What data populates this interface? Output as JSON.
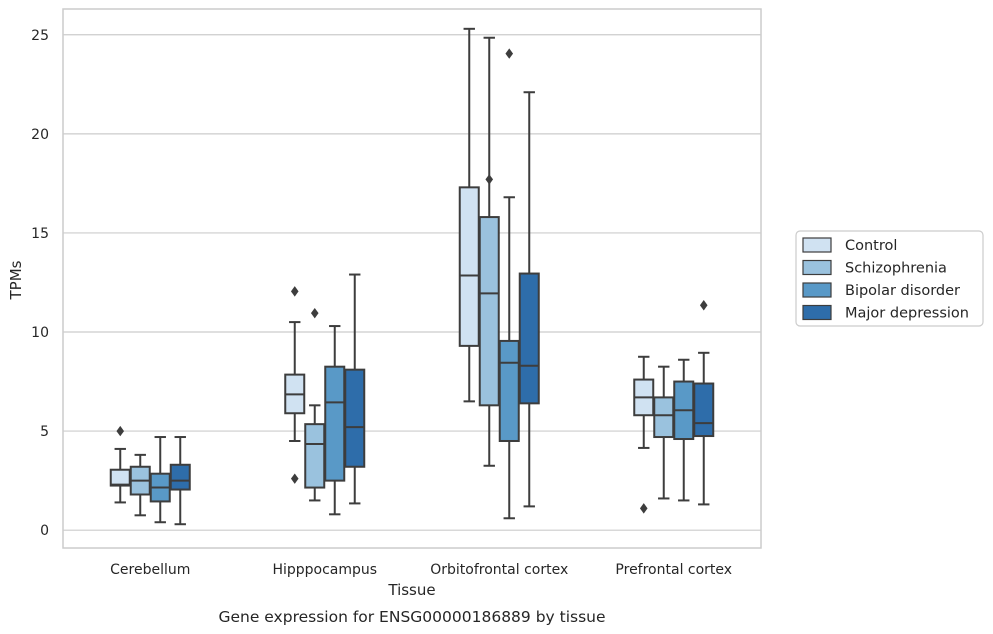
{
  "chart_data": {
    "type": "box",
    "caption": "Gene expression for ENSG00000186889 by tissue",
    "xlabel": "Tissue",
    "ylabel": "TPMs",
    "ylim": [
      -0.9,
      26.3
    ],
    "yticks": [
      0,
      5,
      10,
      15,
      20,
      25
    ],
    "grid": true,
    "legend_position": "right",
    "categories": [
      "Cerebellum",
      "Hipppocampus",
      "Orbitofrontal cortex",
      "Prefrontal cortex"
    ],
    "series": [
      {
        "name": "Control",
        "color": "#d0e2f2",
        "boxes": [
          {
            "whislo": 1.4,
            "q1": 2.25,
            "med": 2.3,
            "q3": 3.05,
            "whishi": 4.1,
            "fliers": [
              5.0
            ]
          },
          {
            "whislo": 4.5,
            "q1": 5.9,
            "med": 6.85,
            "q3": 7.85,
            "whishi": 10.5,
            "fliers": [
              12.05,
              2.6
            ]
          },
          {
            "whislo": 6.5,
            "q1": 9.3,
            "med": 12.85,
            "q3": 17.3,
            "whishi": 25.3,
            "fliers": []
          },
          {
            "whislo": 4.15,
            "q1": 5.8,
            "med": 6.7,
            "q3": 7.6,
            "whishi": 8.75,
            "fliers": [
              1.1
            ]
          }
        ]
      },
      {
        "name": "Schizophrenia",
        "color": "#9ac2de",
        "boxes": [
          {
            "whislo": 0.75,
            "q1": 1.8,
            "med": 2.5,
            "q3": 3.2,
            "whishi": 3.8,
            "fliers": []
          },
          {
            "whislo": 1.5,
            "q1": 2.15,
            "med": 4.35,
            "q3": 5.35,
            "whishi": 6.3,
            "fliers": [
              10.95
            ]
          },
          {
            "whislo": 3.25,
            "q1": 6.3,
            "med": 11.95,
            "q3": 15.8,
            "whishi": 24.85,
            "fliers": [
              17.7
            ]
          },
          {
            "whislo": 1.6,
            "q1": 4.7,
            "med": 5.8,
            "q3": 6.7,
            "whishi": 8.25,
            "fliers": []
          }
        ]
      },
      {
        "name": "Bipolar disorder",
        "color": "#5999c7",
        "boxes": [
          {
            "whislo": 0.4,
            "q1": 1.45,
            "med": 2.15,
            "q3": 2.85,
            "whishi": 4.7,
            "fliers": []
          },
          {
            "whislo": 0.8,
            "q1": 2.5,
            "med": 6.45,
            "q3": 8.25,
            "whishi": 10.3,
            "fliers": []
          },
          {
            "whislo": 0.6,
            "q1": 4.5,
            "med": 8.45,
            "q3": 9.55,
            "whishi": 16.8,
            "fliers": [
              24.05
            ]
          },
          {
            "whislo": 1.5,
            "q1": 4.6,
            "med": 6.05,
            "q3": 7.5,
            "whishi": 8.6,
            "fliers": []
          }
        ]
      },
      {
        "name": "Major depression",
        "color": "#2e6daa",
        "boxes": [
          {
            "whislo": 0.3,
            "q1": 2.05,
            "med": 2.5,
            "q3": 3.3,
            "whishi": 4.7,
            "fliers": []
          },
          {
            "whislo": 1.35,
            "q1": 3.2,
            "med": 5.2,
            "q3": 8.1,
            "whishi": 12.9,
            "fliers": []
          },
          {
            "whislo": 1.2,
            "q1": 6.4,
            "med": 8.3,
            "q3": 12.95,
            "whishi": 22.1,
            "fliers": []
          },
          {
            "whislo": 1.3,
            "q1": 4.75,
            "med": 5.4,
            "q3": 7.4,
            "whishi": 8.95,
            "fliers": [
              11.35
            ]
          }
        ]
      }
    ]
  }
}
